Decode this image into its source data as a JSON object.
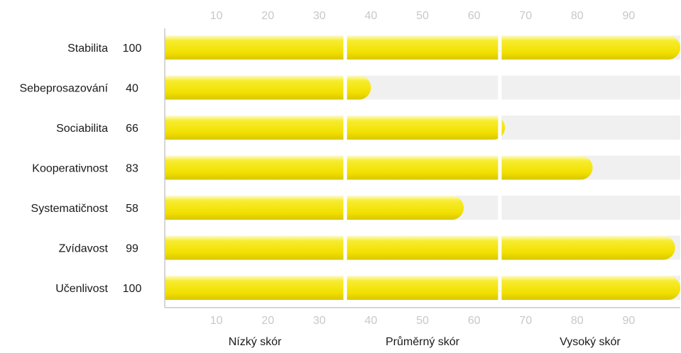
{
  "chart_data": {
    "type": "bar",
    "orientation": "horizontal",
    "categories": [
      "Stabilita",
      "Sebeprosazování",
      "Sociabilita",
      "Kooperativnost",
      "Systematičnost",
      "Zvídavost",
      "Učenlivost"
    ],
    "values": [
      100,
      40,
      66,
      83,
      58,
      99,
      100
    ],
    "value_labels": [
      "100",
      "40",
      "66",
      "83",
      "58",
      "99",
      "100"
    ],
    "xlim": [
      0,
      100
    ],
    "x_ticks": [
      10,
      20,
      30,
      40,
      50,
      60,
      70,
      80,
      90
    ],
    "x_tick_labels": [
      "10",
      "20",
      "30",
      "40",
      "50",
      "60",
      "70",
      "80",
      "90"
    ],
    "zone_boundaries": [
      35,
      65
    ],
    "zones": [
      {
        "label": "Nízký skór",
        "from": 0,
        "to": 35
      },
      {
        "label": "Průměrný skór",
        "from": 35,
        "to": 65
      },
      {
        "label": "Vysoký skór",
        "from": 65,
        "to": 100
      }
    ],
    "grid": false,
    "colors": {
      "bar_fill": "#f2e000",
      "bar_highlight": "#fbf7a0",
      "bar_shadow": "#d8c600",
      "track": "#f0f0f0",
      "tick_label": "#c8c8c8",
      "axis": "#c8c8c8",
      "text": "#1a1a1a"
    }
  }
}
